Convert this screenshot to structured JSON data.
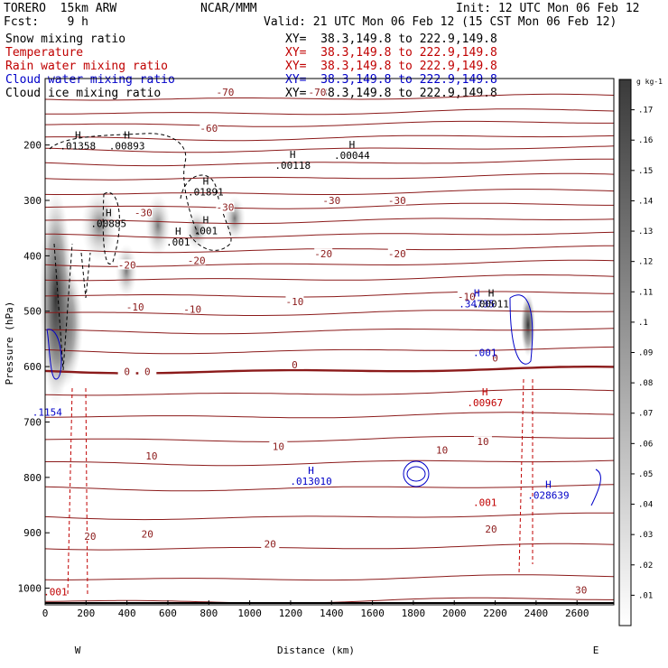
{
  "header": {
    "model": "TORERO  15km ARW",
    "center": "NCAR/MMM",
    "init": "Init: 12 UTC Mon 06 Feb 12",
    "fcst": "Fcst:    9 h",
    "valid": "Valid: 21 UTC Mon 06 Feb 12 (15 CST Mon 06 Feb 12)",
    "fields": [
      {
        "name": "Snow mixing ratio",
        "color": "#000000",
        "xy": "XY=  38.3,149.8 to 222.9,149.8"
      },
      {
        "name": "Temperature",
        "color": "#c00000",
        "xy": "XY=  38.3,149.8 to 222.9,149.8"
      },
      {
        "name": "Rain water mixing ratio",
        "color": "#c00000",
        "xy": "XY=  38.3,149.8 to 222.9,149.8"
      },
      {
        "name": "Cloud water mixing ratio",
        "color": "#0000c8",
        "xy": "XY=  38.3,149.8 to 222.9,149.8"
      },
      {
        "name": "Cloud ice mixing ratio",
        "color": "#000000",
        "xy": "XY=  38.3,149.8 to 222.9,149.8"
      }
    ]
  },
  "chart_data": {
    "type": "contour-cross-section",
    "xlabel": "Distance (km)",
    "ylabel": "Pressure (hPa)",
    "x_ticks": [
      0,
      200,
      400,
      600,
      800,
      1000,
      1200,
      1400,
      1600,
      1800,
      2000,
      2200,
      2400,
      2600
    ],
    "y_ticks": [
      200,
      300,
      400,
      500,
      600,
      700,
      800,
      900,
      1000
    ],
    "xlim": [
      0,
      2780
    ],
    "ylim": [
      1030,
      80
    ],
    "endpoints": {
      "left": "W",
      "right": "E"
    },
    "colorbar": {
      "unit": "g kg-1",
      "ticks": [
        ".01",
        ".02",
        ".03",
        ".04",
        ".05",
        ".06",
        ".07",
        ".08",
        ".09",
        ".1",
        ".11",
        ".12",
        ".13",
        ".14",
        ".15",
        ".16",
        ".17"
      ]
    },
    "temperature_labels": [
      {
        "text": "-70",
        "x": 880,
        "p": 106
      },
      {
        "text": "-70",
        "x": 1330,
        "p": 106
      },
      {
        "text": "-60",
        "x": 800,
        "p": 171
      },
      {
        "text": "-30",
        "x": 480,
        "p": 324
      },
      {
        "text": "-30",
        "x": 880,
        "p": 314
      },
      {
        "text": "-30",
        "x": 1400,
        "p": 302
      },
      {
        "text": "-30",
        "x": 1720,
        "p": 302
      },
      {
        "text": "-20",
        "x": 400,
        "p": 418
      },
      {
        "text": "-20",
        "x": 740,
        "p": 410
      },
      {
        "text": "-20",
        "x": 1360,
        "p": 398
      },
      {
        "text": "-20",
        "x": 1720,
        "p": 398
      },
      {
        "text": "-10",
        "x": 440,
        "p": 494
      },
      {
        "text": "-10",
        "x": 720,
        "p": 498
      },
      {
        "text": "-10",
        "x": 1220,
        "p": 484
      },
      {
        "text": "-10",
        "x": 2060,
        "p": 475
      },
      {
        "text": "0",
        "x": 400,
        "p": 610
      },
      {
        "text": "0",
        "x": 500,
        "p": 610
      },
      {
        "text": "0",
        "x": 1220,
        "p": 598
      },
      {
        "text": "0",
        "x": 2200,
        "p": 586
      },
      {
        "text": "10",
        "x": 520,
        "p": 763
      },
      {
        "text": "10",
        "x": 1140,
        "p": 746
      },
      {
        "text": "10",
        "x": 1940,
        "p": 752
      },
      {
        "text": "10",
        "x": 2140,
        "p": 737
      },
      {
        "text": "20",
        "x": 220,
        "p": 908
      },
      {
        "text": "20",
        "x": 500,
        "p": 904
      },
      {
        "text": "20",
        "x": 1100,
        "p": 922
      },
      {
        "text": "20",
        "x": 2180,
        "p": 895
      },
      {
        "text": "30",
        "x": 2620,
        "p": 1005
      }
    ],
    "extrema": [
      {
        "label": "H",
        "value": ".01358",
        "x": 160,
        "p": 205,
        "color": "#000000"
      },
      {
        "label": "H",
        "value": ".00893",
        "x": 400,
        "p": 205,
        "color": "#000000"
      },
      {
        "label": "H",
        "value": ".00885",
        "x": 310,
        "p": 345,
        "color": "#000000"
      },
      {
        "label": "H",
        "value": ".001",
        "x": 650,
        "p": 378,
        "color": "#000000"
      },
      {
        "label": "H",
        "value": ".01891",
        "x": 785,
        "p": 288,
        "color": "#000000"
      },
      {
        "label": "H",
        "value": ".001",
        "x": 785,
        "p": 358,
        "color": "#000000"
      },
      {
        "label": "H",
        "value": ".00118",
        "x": 1210,
        "p": 240,
        "color": "#000000"
      },
      {
        "label": "H",
        "value": ".00044",
        "x": 1500,
        "p": 222,
        "color": "#000000"
      },
      {
        "label": "H",
        "value": ".34735",
        "x": 2110,
        "p": 490,
        "color": "#0000c8"
      },
      {
        "label": "H",
        "value": ".00011",
        "x": 2180,
        "p": 490,
        "color": "#000000"
      },
      {
        "label": "",
        "value": ".001",
        "x": 2150,
        "p": 578,
        "color": "#0000c8"
      },
      {
        "label": "H",
        "value": ".00967",
        "x": 2150,
        "p": 668,
        "color": "#c00000"
      },
      {
        "label": "",
        "value": ".001",
        "x": 2150,
        "p": 848,
        "color": "#c00000"
      },
      {
        "label": "",
        "value": ".1154",
        "x": 10,
        "p": 685,
        "color": "#0000c8"
      },
      {
        "label": "H",
        "value": ".013010",
        "x": 1300,
        "p": 810,
        "color": "#0000c8"
      },
      {
        "label": "H",
        "value": ".028639",
        "x": 2460,
        "p": 835,
        "color": "#0000c8"
      },
      {
        "label": "",
        "value": ".001",
        "x": 50,
        "p": 1010,
        "color": "#c00000"
      }
    ]
  }
}
